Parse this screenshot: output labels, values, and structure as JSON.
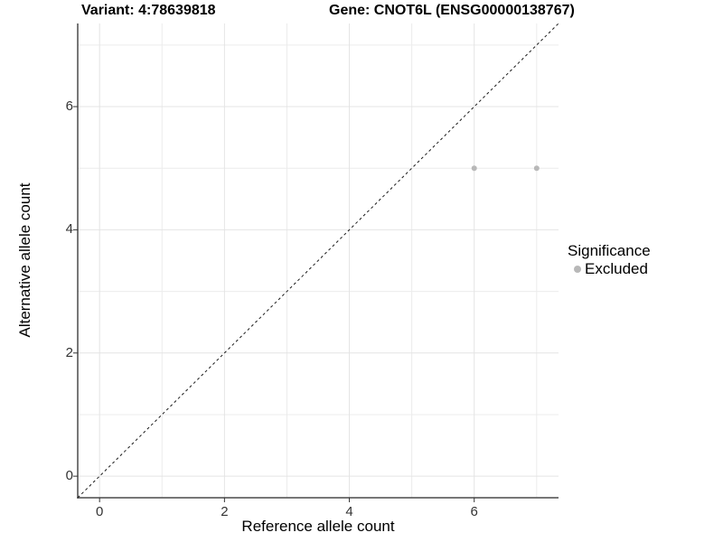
{
  "header": {
    "variant_title": "Variant: 4:78639818",
    "gene_title": "Gene: CNOT6L (ENSG00000138767)"
  },
  "chart_data": {
    "type": "scatter",
    "title": "Variant: 4:78639818    Gene: CNOT6L (ENSG00000138767)",
    "xlabel": "Reference allele count",
    "ylabel": "Alternative allele count",
    "xlim": [
      -0.35,
      7.35
    ],
    "ylim": [
      -0.35,
      7.35
    ],
    "x_ticks": [
      0,
      2,
      4,
      6
    ],
    "y_ticks": [
      0,
      2,
      4,
      6
    ],
    "x_minor_gridlines": [
      1,
      3,
      5,
      7
    ],
    "y_minor_gridlines": [
      1,
      3,
      5,
      7
    ],
    "grid": "on",
    "legend_position": "right",
    "reference_line": {
      "type": "identity",
      "style": "dashed",
      "from": -0.35,
      "to": 7.35
    },
    "series": [
      {
        "name": "Excluded",
        "color": "#b8b8b8",
        "points": [
          {
            "x": 6,
            "y": 5
          },
          {
            "x": 7,
            "y": 5
          }
        ]
      }
    ]
  },
  "legend": {
    "title": "Significance",
    "items": [
      {
        "label": "Excluded",
        "color": "#b8b8b8"
      }
    ]
  },
  "colors": {
    "background": "#ffffff",
    "axis_line": "#4a4a4a",
    "tick_mark": "#333333",
    "tick_label": "#333333",
    "grid_major": "#e4e4e4",
    "grid_minor": "#ececec",
    "identity_line": "#1a1a1a",
    "point": "#b8b8b8",
    "text": "#000000"
  }
}
